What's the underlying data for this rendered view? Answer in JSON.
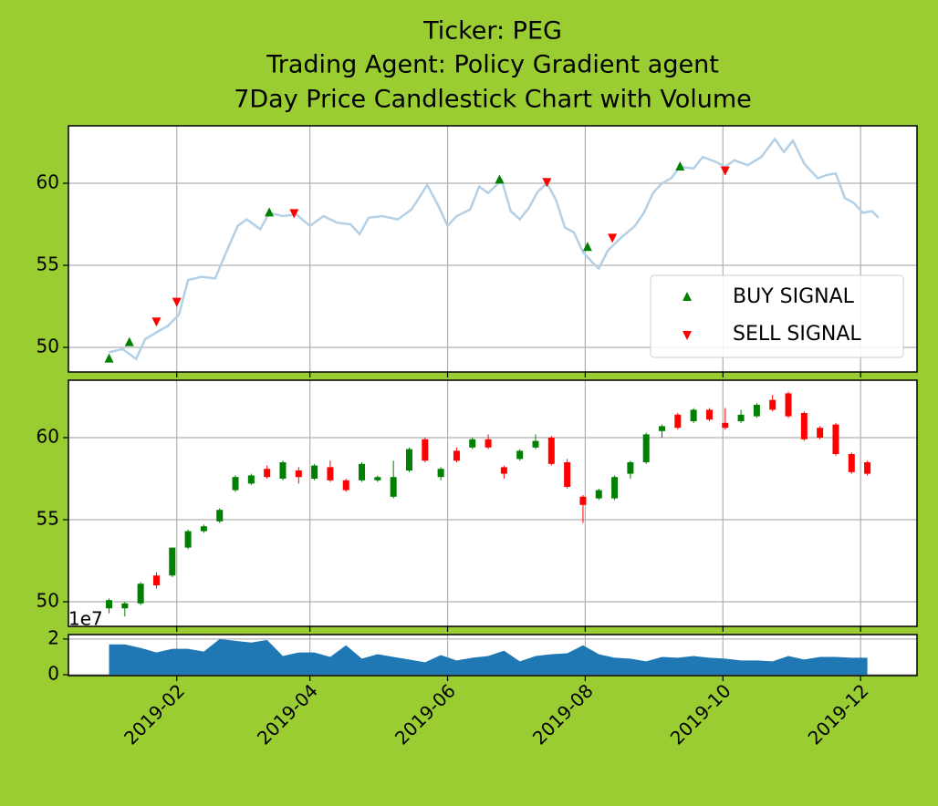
{
  "chart_data": [
    {
      "type": "line",
      "title": [
        "Ticker: PEG",
        "Trading Agent: Policy Gradient agent",
        "7Day Price Candlestick Chart with Volume"
      ],
      "x": [
        2,
        8,
        14,
        18,
        24,
        28,
        33,
        37,
        43,
        49,
        53,
        59,
        63,
        69,
        73,
        79,
        85,
        91,
        97,
        103,
        109,
        113,
        117,
        123,
        130,
        136,
        143,
        148,
        152,
        156,
        162,
        166,
        170,
        176,
        180,
        184,
        188,
        192,
        196,
        200,
        204,
        208,
        212,
        216,
        219,
        223,
        229,
        235,
        239,
        243,
        247,
        251,
        255,
        261,
        265,
        271,
        275,
        279,
        285,
        291,
        297,
        301,
        305,
        310,
        316,
        320,
        324,
        328,
        332,
        336,
        340,
        343
      ],
      "values": [
        49.7,
        49.9,
        49.3,
        50.5,
        51.0,
        51.3,
        52.0,
        54.1,
        54.3,
        54.2,
        55.5,
        57.4,
        57.8,
        57.2,
        58.2,
        58.0,
        58.1,
        57.4,
        58.0,
        57.6,
        57.5,
        56.9,
        57.9,
        58.0,
        57.8,
        58.4,
        59.9,
        58.6,
        57.4,
        58.0,
        58.4,
        59.8,
        59.4,
        60.2,
        58.3,
        57.8,
        58.5,
        59.5,
        60.0,
        59.0,
        57.3,
        57.0,
        55.8,
        55.2,
        54.8,
        55.9,
        56.7,
        57.4,
        58.2,
        59.4,
        60.0,
        60.3,
        61.0,
        60.9,
        61.6,
        61.3,
        61.0,
        61.4,
        61.1,
        61.6,
        62.7,
        61.9,
        62.6,
        61.2,
        60.3,
        60.5,
        60.6,
        59.1,
        58.8,
        58.2,
        58.3,
        57.9
      ],
      "color": "#b4d0e6",
      "signals": [
        {
          "name": "BUY SIGNAL",
          "marker": "up",
          "color": "#008000",
          "x": [
            2,
            11,
            73,
            175,
            214,
            255
          ],
          "values": [
            49.3,
            50.3,
            58.2,
            60.2,
            56.1,
            61.0
          ]
        },
        {
          "name": "SELL SIGNAL",
          "marker": "down",
          "color": "#ff0000",
          "x": [
            23,
            32,
            84,
            196,
            225,
            275
          ],
          "values": [
            51.6,
            52.8,
            58.2,
            60.1,
            56.7,
            60.8
          ]
        }
      ],
      "legend": "lower right",
      "xlim": [
        -16,
        360
      ],
      "ylim": [
        48.5,
        63.5
      ],
      "yticks": [
        50,
        55,
        60
      ],
      "grid": true
    },
    {
      "type": "candlestick",
      "x": [
        2,
        9,
        16,
        23,
        30,
        37,
        44,
        51,
        58,
        65,
        72,
        79,
        86,
        93,
        100,
        107,
        114,
        121,
        128,
        135,
        142,
        149,
        156,
        163,
        170,
        177,
        184,
        191,
        198,
        205,
        212,
        219,
        226,
        233,
        240,
        247,
        254,
        261,
        268,
        275,
        282,
        289,
        296,
        303,
        310,
        317,
        324,
        331,
        338
      ],
      "open": [
        49.6,
        49.6,
        49.9,
        51.6,
        51.6,
        53.3,
        54.3,
        54.9,
        56.8,
        57.2,
        58.1,
        57.5,
        58.0,
        57.5,
        58.2,
        57.4,
        57.4,
        57.4,
        56.4,
        58.0,
        59.9,
        57.6,
        59.2,
        59.4,
        59.9,
        58.2,
        58.7,
        59.4,
        60.0,
        58.5,
        56.4,
        56.3,
        56.3,
        57.8,
        58.5,
        60.4,
        61.4,
        61.0,
        61.7,
        60.9,
        61.0,
        61.3,
        62.3,
        62.7,
        61.5,
        60.6,
        60.8,
        59.0,
        58.5
      ],
      "high": [
        50.2,
        50.0,
        51.2,
        51.8,
        53.3,
        54.4,
        54.7,
        55.7,
        57.7,
        57.8,
        58.3,
        58.6,
        58.2,
        58.4,
        58.6,
        57.5,
        58.5,
        57.7,
        58.6,
        59.4,
        60.0,
        58.2,
        59.4,
        60.0,
        60.2,
        58.3,
        59.3,
        60.2,
        60.1,
        58.7,
        56.5,
        56.9,
        57.7,
        58.6,
        60.3,
        60.8,
        61.5,
        61.8,
        61.8,
        61.8,
        61.7,
        62.1,
        62.6,
        62.8,
        61.6,
        60.7,
        60.9,
        59.1,
        58.6
      ],
      "low": [
        49.3,
        49.1,
        49.8,
        50.8,
        51.5,
        53.2,
        54.2,
        54.8,
        56.7,
        57.1,
        57.5,
        57.4,
        57.2,
        57.4,
        57.3,
        56.7,
        57.3,
        57.3,
        56.3,
        57.9,
        58.5,
        57.4,
        58.5,
        59.3,
        59.3,
        57.5,
        58.6,
        59.3,
        58.3,
        56.9,
        54.8,
        56.2,
        56.2,
        57.5,
        58.4,
        60.0,
        60.5,
        60.9,
        61.0,
        60.5,
        60.9,
        61.2,
        61.6,
        61.2,
        59.8,
        59.9,
        58.9,
        57.8,
        57.7
      ],
      "close": [
        50.1,
        49.9,
        51.1,
        51.0,
        53.3,
        54.3,
        54.6,
        55.6,
        57.6,
        57.7,
        57.6,
        58.5,
        57.6,
        58.3,
        57.4,
        56.8,
        58.4,
        57.6,
        57.6,
        59.3,
        58.6,
        58.1,
        58.6,
        59.9,
        59.4,
        57.8,
        59.2,
        59.8,
        58.4,
        57.0,
        55.9,
        56.8,
        57.6,
        58.5,
        60.2,
        60.7,
        60.6,
        61.7,
        61.1,
        60.6,
        61.4,
        62.0,
        61.7,
        61.3,
        59.9,
        60.0,
        59.0,
        57.9,
        57.8
      ],
      "up_color": "#008000",
      "down_color": "#ff0000",
      "xlim": [
        -16,
        360
      ],
      "ylim": [
        48.5,
        63.5
      ],
      "yticks": [
        50,
        55,
        60
      ],
      "grid": true
    },
    {
      "type": "area",
      "x": [
        2,
        9,
        16,
        23,
        30,
        37,
        44,
        51,
        58,
        65,
        72,
        79,
        86,
        93,
        100,
        107,
        114,
        121,
        128,
        135,
        142,
        149,
        156,
        163,
        170,
        177,
        184,
        191,
        198,
        205,
        212,
        219,
        226,
        233,
        240,
        247,
        254,
        261,
        268,
        275,
        282,
        289,
        296,
        303,
        310,
        317,
        324,
        331,
        338
      ],
      "values": [
        1.7,
        1.7,
        1.5,
        1.25,
        1.45,
        1.45,
        1.3,
        2.0,
        1.9,
        1.8,
        1.95,
        1.05,
        1.25,
        1.25,
        1.0,
        1.65,
        0.9,
        1.15,
        1.0,
        0.85,
        0.7,
        1.1,
        0.8,
        0.95,
        1.05,
        1.35,
        0.75,
        1.05,
        1.15,
        1.2,
        1.65,
        1.15,
        0.95,
        0.9,
        0.75,
        1.0,
        0.95,
        1.05,
        0.95,
        0.9,
        0.8,
        0.8,
        0.75,
        1.05,
        0.85,
        1.0,
        1.0,
        0.95,
        0.95
      ],
      "color": "#1f77b4",
      "y_offset_label": "1e7",
      "xlim": [
        -16,
        360
      ],
      "ylim": [
        -0.05,
        2.25
      ],
      "yticks": [
        0,
        2
      ],
      "xticks": [
        {
          "value": 32,
          "label": "2019-02"
        },
        {
          "value": 91,
          "label": "2019-04"
        },
        {
          "value": 152,
          "label": "2019-06"
        },
        {
          "value": 213,
          "label": "2019-08"
        },
        {
          "value": 274,
          "label": "2019-10"
        },
        {
          "value": 335,
          "label": "2019-12"
        }
      ],
      "grid": true
    }
  ]
}
